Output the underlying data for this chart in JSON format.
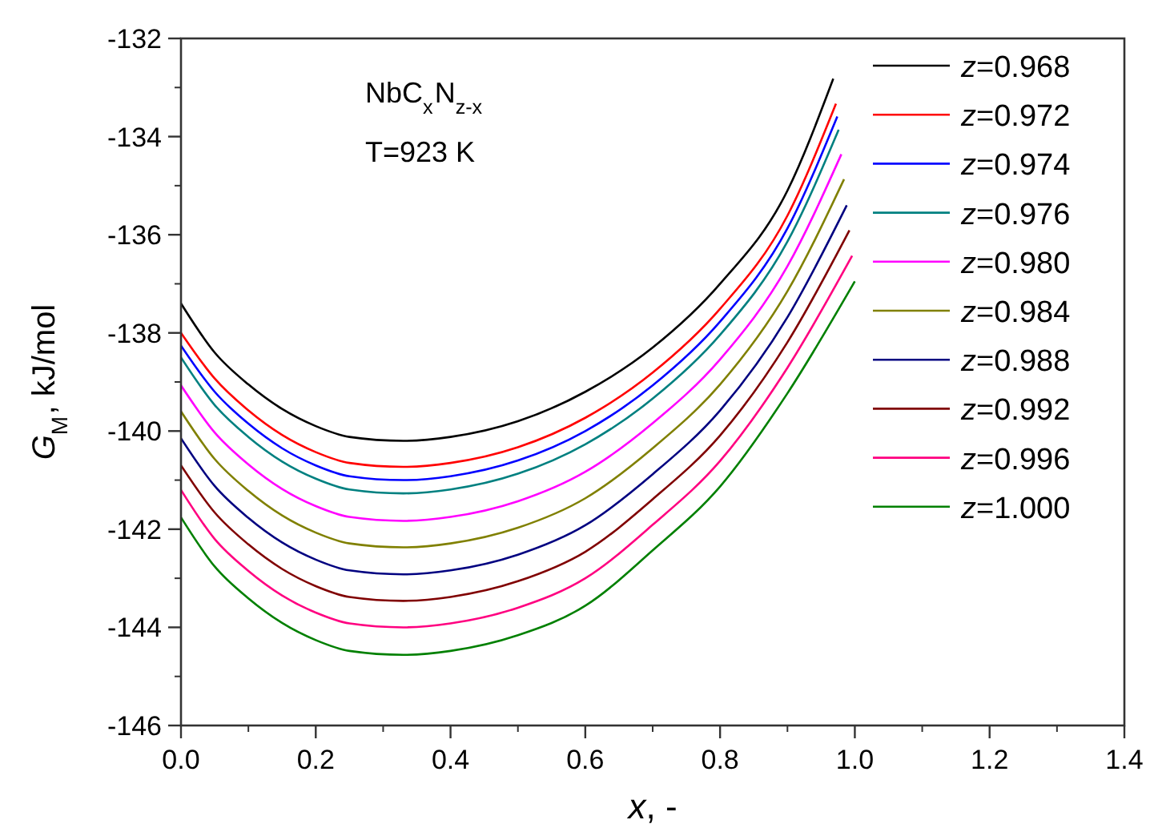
{
  "chart_data": {
    "type": "line",
    "xlabel": "x, -",
    "ylabel": "G$_{M}$, kJ/mol",
    "annotations": [
      "NbC$_{x}$N$_{z-x}$",
      "T=923 K"
    ],
    "xlim": [
      0,
      1.4
    ],
    "ylim": [
      -146,
      -132
    ],
    "xticks": [
      {
        "value": 0,
        "label": "0.0"
      },
      {
        "value": 0.2,
        "label": "0.2"
      },
      {
        "value": 0.4,
        "label": "0.4"
      },
      {
        "value": 0.6,
        "label": "0.6"
      },
      {
        "value": 0.8,
        "label": "0.8"
      },
      {
        "value": 1,
        "label": "1.0"
      },
      {
        "value": 1.2,
        "label": "1.2"
      },
      {
        "value": 1.4,
        "label": "1.4"
      }
    ],
    "yticks": [
      -146,
      -144,
      -142,
      -140,
      -138,
      -136,
      -134,
      -132
    ],
    "legend": "top right",
    "grid": false,
    "marker": "none",
    "line_style": "solid",
    "series": [
      {
        "name": "z=0.968",
        "color": "#000000",
        "x": [
          0,
          0.05,
          0.1,
          0.15,
          0.2,
          0.25,
          0.33,
          0.4,
          0.5,
          0.6,
          0.7,
          0.8,
          0.9,
          0.968
        ],
        "values": [
          -137.4,
          -138.4,
          -139.05,
          -139.55,
          -139.9,
          -140.12,
          -140.2,
          -140.12,
          -139.8,
          -139.2,
          -138.3,
          -137.0,
          -135.1,
          -132.82
        ]
      },
      {
        "name": "z=0.972",
        "color": "#ff0000",
        "x": [
          0,
          0.05,
          0.1,
          0.15,
          0.2,
          0.25,
          0.33,
          0.4,
          0.5,
          0.6,
          0.7,
          0.8,
          0.9,
          0.972
        ],
        "values": [
          -138.0,
          -138.93,
          -139.58,
          -140.08,
          -140.43,
          -140.65,
          -140.73,
          -140.65,
          -140.33,
          -139.73,
          -138.81,
          -137.51,
          -135.61,
          -133.33
        ]
      },
      {
        "name": "z=0.974",
        "color": "#0000ff",
        "x": [
          0,
          0.05,
          0.1,
          0.15,
          0.2,
          0.25,
          0.33,
          0.4,
          0.5,
          0.6,
          0.7,
          0.8,
          0.9,
          0.974
        ],
        "values": [
          -138.26,
          -139.2,
          -139.85,
          -140.35,
          -140.7,
          -140.92,
          -141.0,
          -140.92,
          -140.6,
          -140.0,
          -139.07,
          -137.77,
          -135.87,
          -133.59
        ]
      },
      {
        "name": "z=0.976",
        "color": "#008080",
        "x": [
          0,
          0.05,
          0.1,
          0.15,
          0.2,
          0.25,
          0.33,
          0.4,
          0.5,
          0.6,
          0.7,
          0.8,
          0.9,
          0.976
        ],
        "values": [
          -138.5,
          -139.47,
          -140.12,
          -140.62,
          -140.97,
          -141.19,
          -141.27,
          -141.19,
          -140.87,
          -140.27,
          -139.34,
          -138.04,
          -136.14,
          -133.86
        ]
      },
      {
        "name": "z=0.980",
        "color": "#ff00ff",
        "x": [
          0,
          0.05,
          0.1,
          0.15,
          0.2,
          0.25,
          0.33,
          0.4,
          0.5,
          0.6,
          0.7,
          0.8,
          0.9,
          0.98
        ],
        "values": [
          -139.07,
          -140.03,
          -140.68,
          -141.18,
          -141.53,
          -141.75,
          -141.83,
          -141.75,
          -141.43,
          -140.83,
          -139.84,
          -138.54,
          -136.64,
          -134.36
        ]
      },
      {
        "name": "z=0.984",
        "color": "#808000",
        "x": [
          0,
          0.05,
          0.1,
          0.15,
          0.2,
          0.25,
          0.33,
          0.4,
          0.5,
          0.6,
          0.7,
          0.8,
          0.9,
          0.984
        ],
        "values": [
          -139.6,
          -140.57,
          -141.22,
          -141.72,
          -142.07,
          -142.29,
          -142.37,
          -142.29,
          -141.97,
          -141.37,
          -140.35,
          -139.05,
          -137.15,
          -134.87
        ]
      },
      {
        "name": "z=0.988",
        "color": "#000080",
        "x": [
          0,
          0.05,
          0.1,
          0.15,
          0.2,
          0.25,
          0.33,
          0.4,
          0.5,
          0.6,
          0.7,
          0.8,
          0.9,
          0.988
        ],
        "values": [
          -140.15,
          -141.12,
          -141.77,
          -142.27,
          -142.62,
          -142.84,
          -142.92,
          -142.84,
          -142.52,
          -141.92,
          -140.88,
          -139.58,
          -137.68,
          -135.4
        ]
      },
      {
        "name": "z=0.992",
        "color": "#800000",
        "x": [
          0,
          0.05,
          0.1,
          0.15,
          0.2,
          0.25,
          0.33,
          0.4,
          0.5,
          0.6,
          0.7,
          0.8,
          0.9,
          0.992
        ],
        "values": [
          -140.7,
          -141.66,
          -142.31,
          -142.81,
          -143.16,
          -143.38,
          -143.46,
          -143.38,
          -143.06,
          -142.46,
          -141.39,
          -140.09,
          -138.19,
          -135.91
        ]
      },
      {
        "name": "z=0.996",
        "color": "#ff0080",
        "x": [
          0,
          0.05,
          0.1,
          0.15,
          0.2,
          0.25,
          0.33,
          0.4,
          0.5,
          0.6,
          0.7,
          0.8,
          0.9,
          0.996
        ],
        "values": [
          -141.2,
          -142.2,
          -142.85,
          -143.35,
          -143.7,
          -143.92,
          -144.0,
          -143.92,
          -143.6,
          -143.0,
          -141.91,
          -140.61,
          -138.71,
          -136.43
        ]
      },
      {
        "name": "z=1.000",
        "color": "#008000",
        "x": [
          0,
          0.05,
          0.1,
          0.15,
          0.2,
          0.25,
          0.33,
          0.4,
          0.5,
          0.6,
          0.7,
          0.8,
          0.9,
          1.0
        ],
        "values": [
          -141.76,
          -142.76,
          -143.41,
          -143.91,
          -144.26,
          -144.48,
          -144.56,
          -144.48,
          -144.16,
          -143.56,
          -142.43,
          -141.13,
          -139.23,
          -136.95
        ]
      }
    ]
  }
}
